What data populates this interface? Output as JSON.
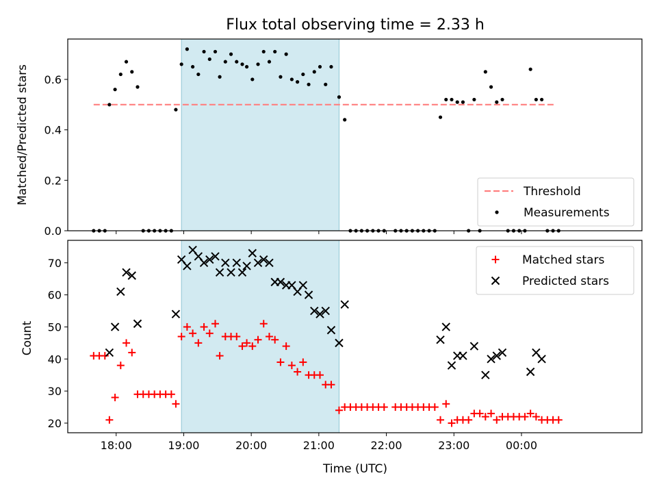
{
  "chart_data": [
    {
      "type": "scatter",
      "title": "Flux total observing time = 2.33 h",
      "ylabel": "Matched/Predicted stars",
      "ylim": [
        0,
        0.76
      ],
      "yticks": [
        "0.0",
        "0.2",
        "0.4",
        "0.6"
      ],
      "shaded_region": {
        "start": "18:58",
        "end": "21:18",
        "color": "#add8e6"
      },
      "threshold": {
        "name": "Threshold",
        "value": 0.5,
        "x_start": "17:40",
        "x_end": "00:30",
        "color": "#ff7f7f",
        "style": "dashed"
      },
      "legend": {
        "placement": "lower-right",
        "entries": [
          "Threshold",
          "Measurements"
        ]
      },
      "series": [
        {
          "name": "Measurements",
          "marker": "dot",
          "color": "#000000",
          "points": [
            [
              "17:40",
              0
            ],
            [
              "17:45",
              0
            ],
            [
              "17:50",
              0
            ],
            [
              "17:54",
              0.5
            ],
            [
              "17:59",
              0.56
            ],
            [
              "18:04",
              0.62
            ],
            [
              "18:09",
              0.67
            ],
            [
              "18:14",
              0.63
            ],
            [
              "18:19",
              0.57
            ],
            [
              "18:24",
              0
            ],
            [
              "18:29",
              0
            ],
            [
              "18:34",
              0
            ],
            [
              "18:39",
              0
            ],
            [
              "18:44",
              0
            ],
            [
              "18:49",
              0
            ],
            [
              "18:53",
              0.48
            ],
            [
              "18:58",
              0.66
            ],
            [
              "19:03",
              0.72
            ],
            [
              "19:08",
              0.65
            ],
            [
              "19:13",
              0.62
            ],
            [
              "19:18",
              0.71
            ],
            [
              "19:23",
              0.68
            ],
            [
              "19:28",
              0.71
            ],
            [
              "19:32",
              0.61
            ],
            [
              "19:37",
              0.67
            ],
            [
              "19:42",
              0.7
            ],
            [
              "19:47",
              0.67
            ],
            [
              "19:52",
              0.66
            ],
            [
              "19:56",
              0.65
            ],
            [
              "20:01",
              0.6
            ],
            [
              "20:06",
              0.66
            ],
            [
              "20:11",
              0.71
            ],
            [
              "20:16",
              0.67
            ],
            [
              "20:21",
              0.71
            ],
            [
              "20:26",
              0.61
            ],
            [
              "20:31",
              0.7
            ],
            [
              "20:36",
              0.6
            ],
            [
              "20:41",
              0.59
            ],
            [
              "20:46",
              0.62
            ],
            [
              "20:51",
              0.58
            ],
            [
              "20:56",
              0.63
            ],
            [
              "21:01",
              0.65
            ],
            [
              "21:06",
              0.58
            ],
            [
              "21:11",
              0.65
            ],
            [
              "21:18",
              0.53
            ],
            [
              "21:23",
              0.44
            ],
            [
              "21:28",
              0
            ],
            [
              "21:33",
              0
            ],
            [
              "21:38",
              0
            ],
            [
              "21:43",
              0
            ],
            [
              "21:48",
              0
            ],
            [
              "21:53",
              0
            ],
            [
              "21:58",
              0
            ],
            [
              "22:08",
              0
            ],
            [
              "22:13",
              0
            ],
            [
              "22:18",
              0
            ],
            [
              "22:23",
              0
            ],
            [
              "22:28",
              0
            ],
            [
              "22:33",
              0
            ],
            [
              "22:38",
              0
            ],
            [
              "22:43",
              0
            ],
            [
              "22:48",
              0.45
            ],
            [
              "22:53",
              0.52
            ],
            [
              "22:58",
              0.52
            ],
            [
              "23:03",
              0.51
            ],
            [
              "23:08",
              0.51
            ],
            [
              "23:13",
              0
            ],
            [
              "23:18",
              0.52
            ],
            [
              "23:23",
              0
            ],
            [
              "23:28",
              0.63
            ],
            [
              "23:33",
              0.57
            ],
            [
              "23:38",
              0.51
            ],
            [
              "23:43",
              0.52
            ],
            [
              "23:48",
              0
            ],
            [
              "23:53",
              0
            ],
            [
              "23:58",
              0
            ],
            [
              "00:03",
              0
            ],
            [
              "00:08",
              0.64
            ],
            [
              "00:13",
              0.52
            ],
            [
              "00:18",
              0.52
            ],
            [
              "00:23",
              0
            ],
            [
              "00:28",
              0
            ],
            [
              "00:33",
              0
            ]
          ]
        }
      ]
    },
    {
      "type": "scatter",
      "xlabel": "Time (UTC)",
      "ylabel": "Count",
      "ylim": [
        17,
        77
      ],
      "yticks": [
        "20",
        "30",
        "40",
        "50",
        "60",
        "70"
      ],
      "xticks": [
        "18:00",
        "19:00",
        "20:00",
        "21:00",
        "22:00",
        "23:00",
        "00:00"
      ],
      "shaded_region": {
        "start": "18:58",
        "end": "21:18",
        "color": "#add8e6"
      },
      "legend": {
        "placement": "top-right",
        "entries": [
          "Matched stars",
          "Predicted stars"
        ]
      },
      "series": [
        {
          "name": "Matched stars",
          "marker": "plus",
          "color": "#ff0000",
          "points": [
            [
              "17:40",
              41
            ],
            [
              "17:45",
              41
            ],
            [
              "17:50",
              41
            ],
            [
              "17:54",
              21
            ],
            [
              "17:59",
              28
            ],
            [
              "18:04",
              38
            ],
            [
              "18:09",
              45
            ],
            [
              "18:14",
              42
            ],
            [
              "18:19",
              29
            ],
            [
              "18:24",
              29
            ],
            [
              "18:29",
              29
            ],
            [
              "18:34",
              29
            ],
            [
              "18:39",
              29
            ],
            [
              "18:44",
              29
            ],
            [
              "18:49",
              29
            ],
            [
              "18:53",
              26
            ],
            [
              "18:58",
              47
            ],
            [
              "19:03",
              50
            ],
            [
              "19:08",
              48
            ],
            [
              "19:13",
              45
            ],
            [
              "19:18",
              50
            ],
            [
              "19:23",
              48
            ],
            [
              "19:28",
              51
            ],
            [
              "19:32",
              41
            ],
            [
              "19:37",
              47
            ],
            [
              "19:42",
              47
            ],
            [
              "19:47",
              47
            ],
            [
              "19:52",
              44
            ],
            [
              "19:56",
              45
            ],
            [
              "20:01",
              44
            ],
            [
              "20:06",
              46
            ],
            [
              "20:11",
              51
            ],
            [
              "20:16",
              47
            ],
            [
              "20:21",
              46
            ],
            [
              "20:26",
              39
            ],
            [
              "20:31",
              44
            ],
            [
              "20:36",
              38
            ],
            [
              "20:41",
              36
            ],
            [
              "20:46",
              39
            ],
            [
              "20:51",
              35
            ],
            [
              "20:56",
              35
            ],
            [
              "21:01",
              35
            ],
            [
              "21:06",
              32
            ],
            [
              "21:11",
              32
            ],
            [
              "21:18",
              24
            ],
            [
              "21:23",
              25
            ],
            [
              "21:28",
              25
            ],
            [
              "21:33",
              25
            ],
            [
              "21:38",
              25
            ],
            [
              "21:43",
              25
            ],
            [
              "21:48",
              25
            ],
            [
              "21:53",
              25
            ],
            [
              "21:58",
              25
            ],
            [
              "22:08",
              25
            ],
            [
              "22:13",
              25
            ],
            [
              "22:18",
              25
            ],
            [
              "22:23",
              25
            ],
            [
              "22:28",
              25
            ],
            [
              "22:33",
              25
            ],
            [
              "22:38",
              25
            ],
            [
              "22:43",
              25
            ],
            [
              "22:48",
              21
            ],
            [
              "22:53",
              26
            ],
            [
              "22:58",
              20
            ],
            [
              "23:03",
              21
            ],
            [
              "23:08",
              21
            ],
            [
              "23:13",
              21
            ],
            [
              "23:18",
              23
            ],
            [
              "23:23",
              23
            ],
            [
              "23:28",
              22
            ],
            [
              "23:33",
              23
            ],
            [
              "23:38",
              21
            ],
            [
              "23:43",
              22
            ],
            [
              "23:48",
              22
            ],
            [
              "23:53",
              22
            ],
            [
              "23:58",
              22
            ],
            [
              "00:03",
              22
            ],
            [
              "00:08",
              23
            ],
            [
              "00:13",
              22
            ],
            [
              "00:18",
              21
            ],
            [
              "00:23",
              21
            ],
            [
              "00:28",
              21
            ],
            [
              "00:33",
              21
            ]
          ]
        },
        {
          "name": "Predicted stars",
          "marker": "x",
          "color": "#000000",
          "points": [
            [
              "17:54",
              42
            ],
            [
              "17:59",
              50
            ],
            [
              "18:04",
              61
            ],
            [
              "18:09",
              67
            ],
            [
              "18:14",
              66
            ],
            [
              "18:19",
              51
            ],
            [
              "18:53",
              54
            ],
            [
              "18:58",
              71
            ],
            [
              "19:03",
              69
            ],
            [
              "19:08",
              74
            ],
            [
              "19:13",
              72
            ],
            [
              "19:18",
              70
            ],
            [
              "19:23",
              71
            ],
            [
              "19:28",
              72
            ],
            [
              "19:32",
              67
            ],
            [
              "19:37",
              70
            ],
            [
              "19:42",
              67
            ],
            [
              "19:47",
              70
            ],
            [
              "19:52",
              67
            ],
            [
              "19:56",
              69
            ],
            [
              "20:01",
              73
            ],
            [
              "20:06",
              70
            ],
            [
              "20:11",
              71
            ],
            [
              "20:16",
              70
            ],
            [
              "20:21",
              64
            ],
            [
              "20:26",
              64
            ],
            [
              "20:31",
              63
            ],
            [
              "20:36",
              63
            ],
            [
              "20:41",
              61
            ],
            [
              "20:46",
              63
            ],
            [
              "20:51",
              60
            ],
            [
              "20:56",
              55
            ],
            [
              "21:01",
              54
            ],
            [
              "21:06",
              55
            ],
            [
              "21:11",
              49
            ],
            [
              "21:18",
              45
            ],
            [
              "21:23",
              57
            ],
            [
              "22:48",
              46
            ],
            [
              "22:53",
              50
            ],
            [
              "22:58",
              38
            ],
            [
              "23:03",
              41
            ],
            [
              "23:08",
              41
            ],
            [
              "23:18",
              44
            ],
            [
              "23:28",
              35
            ],
            [
              "23:33",
              40
            ],
            [
              "23:38",
              41
            ],
            [
              "23:43",
              42
            ],
            [
              "00:08",
              36
            ],
            [
              "00:13",
              42
            ],
            [
              "00:18",
              40
            ]
          ]
        }
      ]
    }
  ]
}
